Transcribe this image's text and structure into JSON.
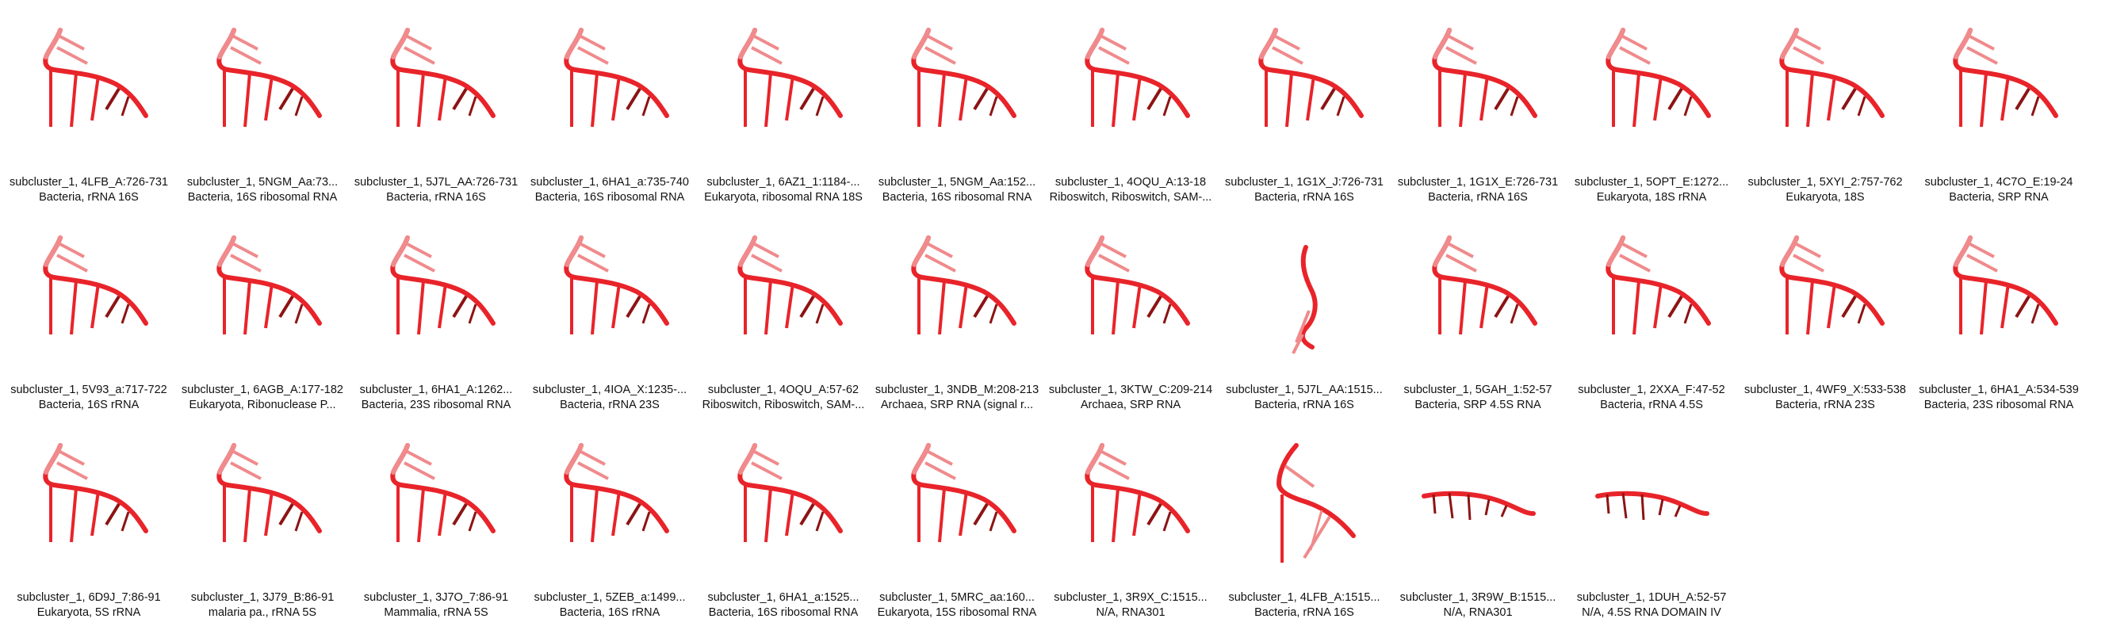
{
  "gallery": {
    "items": [
      {
        "name": "subcluster_1, 4LFB_A:726-731",
        "desc": "Bacteria, rRNA 16S",
        "shape": "hook"
      },
      {
        "name": "subcluster_1, 5NGM_Aa:73...",
        "desc": "Bacteria, 16S ribosomal RNA",
        "shape": "hook"
      },
      {
        "name": "subcluster_1, 5J7L_AA:726-731",
        "desc": "Bacteria, rRNA 16S",
        "shape": "hook"
      },
      {
        "name": "subcluster_1, 6HA1_a:735-740",
        "desc": "Bacteria, 16S ribosomal RNA",
        "shape": "hook"
      },
      {
        "name": "subcluster_1, 6AZ1_1:1184-...",
        "desc": "Eukaryota, ribosomal RNA 18S",
        "shape": "hook"
      },
      {
        "name": "subcluster_1, 5NGM_Aa:152...",
        "desc": "Bacteria, 16S ribosomal RNA",
        "shape": "hook"
      },
      {
        "name": "subcluster_1, 4OQU_A:13-18",
        "desc": "Riboswitch, Riboswitch, SAM-...",
        "shape": "hook"
      },
      {
        "name": "subcluster_1, 1G1X_J:726-731",
        "desc": "Bacteria, rRNA 16S",
        "shape": "hook"
      },
      {
        "name": "subcluster_1, 1G1X_E:726-731",
        "desc": "Bacteria, rRNA 16S",
        "shape": "hook"
      },
      {
        "name": "subcluster_1, 5OPT_E:1272...",
        "desc": "Eukaryota, 18S rRNA",
        "shape": "hook"
      },
      {
        "name": "subcluster_1, 5XYI_2:757-762",
        "desc": "Eukaryota, 18S",
        "shape": "hook"
      },
      {
        "name": "subcluster_1, 4C7O_E:19-24",
        "desc": "Bacteria, SRP RNA",
        "shape": "hook"
      },
      {
        "name": "subcluster_1, 5V93_a:717-722",
        "desc": "Bacteria, 16S rRNA",
        "shape": "hook"
      },
      {
        "name": "subcluster_1, 6AGB_A:177-182",
        "desc": "Eukaryota, Ribonuclease P...",
        "shape": "hook"
      },
      {
        "name": "subcluster_1, 6HA1_A:1262...",
        "desc": "Bacteria, 23S ribosomal RNA",
        "shape": "hook"
      },
      {
        "name": "subcluster_1, 4IOA_X:1235-...",
        "desc": "Bacteria, rRNA 23S",
        "shape": "hook"
      },
      {
        "name": "subcluster_1, 4OQU_A:57-62",
        "desc": "Riboswitch, Riboswitch, SAM-...",
        "shape": "hook"
      },
      {
        "name": "subcluster_1, 3NDB_M:208-213",
        "desc": "Archaea, SRP RNA (signal r...",
        "shape": "hook"
      },
      {
        "name": "subcluster_1, 3KTW_C:209-214",
        "desc": "Archaea, SRP RNA",
        "shape": "hook"
      },
      {
        "name": "subcluster_1, 5J7L_AA:1515...",
        "desc": "Bacteria, rRNA 16S",
        "shape": "twist"
      },
      {
        "name": "subcluster_1, 5GAH_1:52-57",
        "desc": "Bacteria, SRP 4.5S RNA",
        "shape": "hook"
      },
      {
        "name": "subcluster_1, 2XXA_F:47-52",
        "desc": "Bacteria, rRNA 4.5S",
        "shape": "hook"
      },
      {
        "name": "subcluster_1, 4WF9_X:533-538",
        "desc": "Bacteria, rRNA 23S",
        "shape": "hook"
      },
      {
        "name": "subcluster_1, 6HA1_A:534-539",
        "desc": "Bacteria, 23S ribosomal RNA",
        "shape": "hook"
      },
      {
        "name": "subcluster_1, 6D9J_7:86-91",
        "desc": "Eukaryota, 5S rRNA",
        "shape": "hook"
      },
      {
        "name": "subcluster_1, 3J79_B:86-91",
        "desc": "malaria pa., rRNA 5S",
        "shape": "hook"
      },
      {
        "name": "subcluster_1, 3J7O_7:86-91",
        "desc": "Mammalia, rRNA 5S",
        "shape": "hook"
      },
      {
        "name": "subcluster_1, 5ZEB_a:1499...",
        "desc": "Bacteria, 16S rRNA",
        "shape": "hook"
      },
      {
        "name": "subcluster_1, 6HA1_a:1525...",
        "desc": "Bacteria, 16S ribosomal RNA",
        "shape": "hook"
      },
      {
        "name": "subcluster_1, 5MRC_aa:160...",
        "desc": "Eukaryota, 15S ribosomal RNA",
        "shape": "hook"
      },
      {
        "name": "subcluster_1, 3R9X_C:1515...",
        "desc": "N/A, RNA301",
        "shape": "hook"
      },
      {
        "name": "subcluster_1, 4LFB_A:1515...",
        "desc": "Bacteria, rRNA 16S",
        "shape": "arch"
      },
      {
        "name": "subcluster_1, 3R9W_B:1515...",
        "desc": "N/A, RNA301",
        "shape": "flat"
      },
      {
        "name": "subcluster_1, 1DUH_A:52-57",
        "desc": "N/A, 4.5S RNA DOMAIN IV",
        "shape": "flat"
      }
    ]
  },
  "colors": {
    "strand": "#e8242a",
    "strand_light": "#f08a8c",
    "strand_dark": "#8c1414"
  }
}
